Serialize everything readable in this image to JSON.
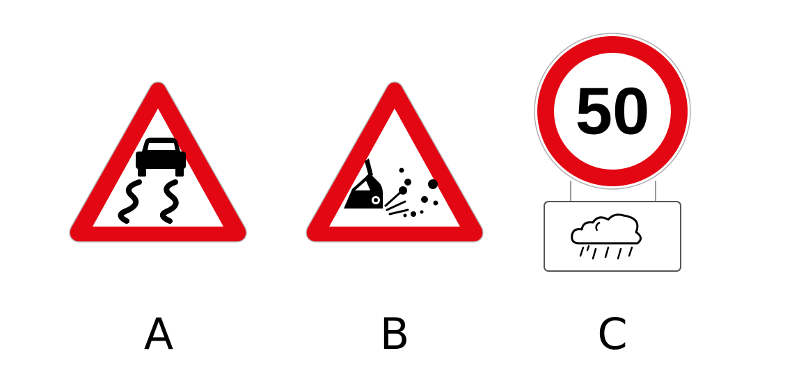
{
  "signs": [
    {
      "id": "A",
      "label": "A",
      "shape": "triangle",
      "icon": "slippery-road-icon",
      "border_color": "#e30613",
      "fill_color": "#ffffff",
      "symbol_color": "#000000"
    },
    {
      "id": "B",
      "label": "B",
      "shape": "triangle",
      "icon": "loose-gravel-icon",
      "border_color": "#e30613",
      "fill_color": "#ffffff",
      "symbol_color": "#000000"
    },
    {
      "id": "C",
      "label": "C",
      "shape": "circle",
      "speed_limit": "50",
      "plate_icon": "rain-cloud-icon",
      "border_color": "#e30613",
      "fill_color": "#ffffff",
      "symbol_color": "#000000"
    }
  ]
}
